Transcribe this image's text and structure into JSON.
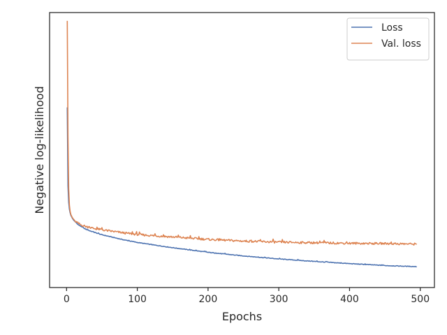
{
  "chart_data": {
    "type": "line",
    "title": "",
    "xlabel": "Epochs",
    "ylabel": "Negative log-likelihood",
    "xlim": [
      -24,
      520
    ],
    "ylim": [
      0,
      1
    ],
    "xticks": [
      0,
      100,
      200,
      300,
      400,
      500
    ],
    "yticks": [],
    "grid": false,
    "legend_position": "top-right",
    "y_values_note": "",
    "series": [
      {
        "name": "Loss",
        "color": "#4c72b0",
        "x": [
          1,
          2,
          3,
          4,
          5,
          6,
          8,
          10,
          12,
          15,
          20,
          25,
          30,
          40,
          50,
          60,
          80,
          100,
          120,
          150,
          200,
          250,
          300,
          350,
          400,
          450,
          495
        ],
        "y": [
          0.655,
          0.37,
          0.31,
          0.285,
          0.272,
          0.263,
          0.253,
          0.245,
          0.24,
          0.232,
          0.222,
          0.215,
          0.209,
          0.2,
          0.192,
          0.186,
          0.174,
          0.164,
          0.156,
          0.145,
          0.128,
          0.115,
          0.104,
          0.095,
          0.087,
          0.08,
          0.076
        ]
      },
      {
        "name": "Val. loss",
        "color": "#dd8452",
        "x": [
          1,
          2,
          3,
          4,
          5,
          6,
          8,
          10,
          12,
          15,
          20,
          25,
          30,
          40,
          50,
          60,
          80,
          100,
          120,
          150,
          200,
          250,
          300,
          350,
          400,
          450,
          495
        ],
        "y": [
          0.97,
          0.55,
          0.36,
          0.3,
          0.278,
          0.266,
          0.255,
          0.248,
          0.242,
          0.236,
          0.228,
          0.224,
          0.22,
          0.214,
          0.21,
          0.206,
          0.199,
          0.193,
          0.189,
          0.184,
          0.175,
          0.169,
          0.165,
          0.163,
          0.161,
          0.16,
          0.158
        ]
      }
    ]
  }
}
